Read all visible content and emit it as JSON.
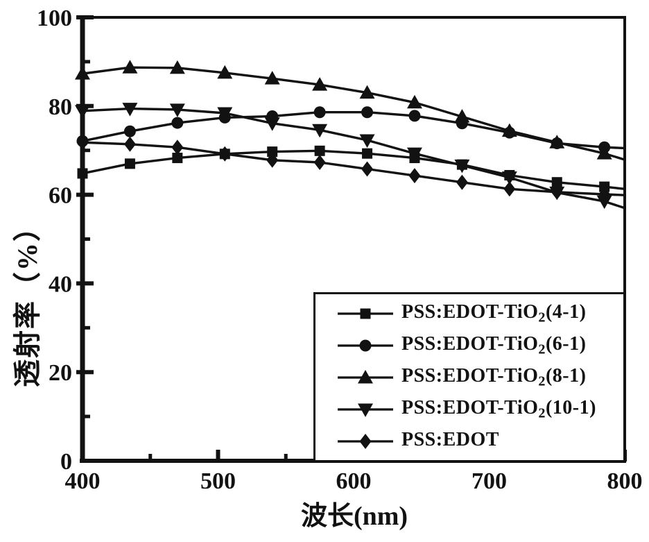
{
  "figure": {
    "background": "#ffffff",
    "ink": "#121212"
  },
  "chart_data": {
    "type": "line",
    "title": "",
    "xlabel": "波长(nm)",
    "ylabel": "透射率（%）",
    "xlim": [
      400,
      800
    ],
    "ylim": [
      0,
      100
    ],
    "x_major_ticks": [
      400,
      500,
      600,
      700,
      800
    ],
    "x_minor_ticks": [
      450,
      550,
      650,
      750
    ],
    "y_major_ticks": [
      0,
      20,
      40,
      60,
      80,
      100
    ],
    "y_minor_ticks": [
      10,
      30,
      50,
      70,
      90
    ],
    "grid": false,
    "legend_position": "inside-bottom-right",
    "x": [
      400,
      435,
      470,
      505,
      540,
      575,
      610,
      645,
      680,
      715,
      750,
      785
    ],
    "series": [
      {
        "name": "PSS:EDOT-TiO₂(4-1)",
        "marker": "square",
        "label_parts": {
          "prefix": "PSS:EDOT-TiO",
          "sub": "2",
          "suffix": "(4-1)"
        },
        "values": [
          64.8,
          67.0,
          68.3,
          69.2,
          69.7,
          69.9,
          69.3,
          68.3,
          66.8,
          64.4,
          62.8,
          61.8
        ],
        "edge_value_at_800": 61.3
      },
      {
        "name": "PSS:EDOT-TiO₂(6-1)",
        "marker": "circle",
        "label_parts": {
          "prefix": "PSS:EDOT-TiO",
          "sub": "2",
          "suffix": "(6-1)"
        },
        "values": [
          72.1,
          74.3,
          76.2,
          77.4,
          77.7,
          78.6,
          78.6,
          77.8,
          76.1,
          74.0,
          71.6,
          70.7
        ],
        "edge_value_at_800": 70.5
      },
      {
        "name": "PSS:EDOT-TiO₂(8-1)",
        "marker": "triangle-up",
        "label_parts": {
          "prefix": "PSS:EDOT-TiO",
          "sub": "2",
          "suffix": "(8-1)"
        },
        "values": [
          87.3,
          88.7,
          88.6,
          87.5,
          86.2,
          84.8,
          83.0,
          80.8,
          77.6,
          74.4,
          71.8,
          69.3
        ],
        "edge_value_at_800": 67.9
      },
      {
        "name": "PSS:EDOT-TiO₂(10-1)",
        "marker": "triangle-down",
        "label_parts": {
          "prefix": "PSS:EDOT-TiO",
          "sub": "2",
          "suffix": "(10-1)"
        },
        "values": [
          78.9,
          79.4,
          79.2,
          78.4,
          76.1,
          74.6,
          72.3,
          69.3,
          66.6,
          63.9,
          60.5,
          58.5
        ],
        "edge_value_at_800": 57.0
      },
      {
        "name": "PSS:EDOT",
        "marker": "diamond",
        "label_parts": {
          "prefix": "PSS:EDOT",
          "sub": "",
          "suffix": ""
        },
        "values": [
          71.8,
          71.4,
          70.7,
          69.2,
          67.8,
          67.3,
          65.8,
          64.3,
          62.8,
          61.3,
          60.6,
          60.1
        ],
        "edge_value_at_800": 59.9
      }
    ]
  }
}
